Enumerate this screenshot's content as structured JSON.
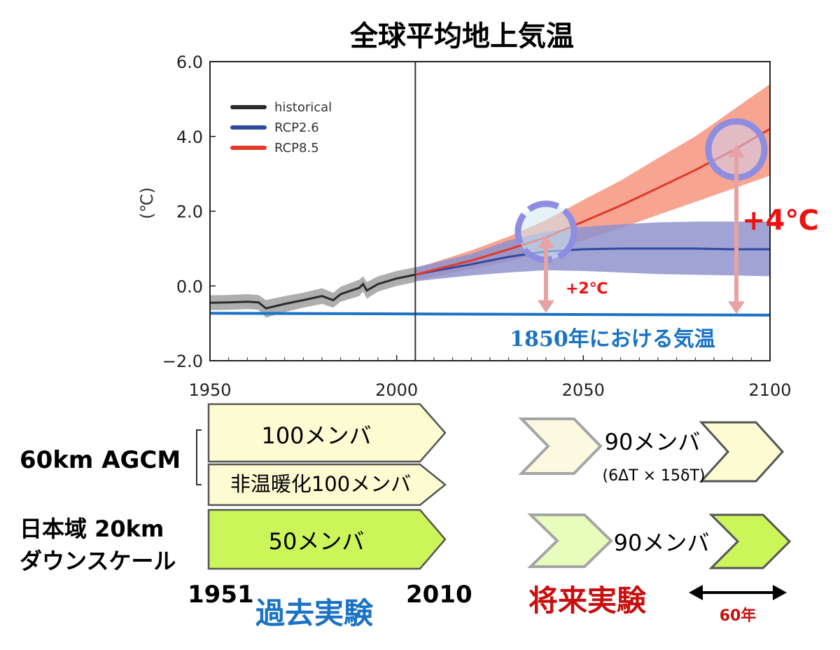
{
  "colors": {
    "historical": "#2b2b2b",
    "historical_band": "#9a9a9a",
    "rcp26": "#2f4aa0",
    "rcp26_band": "#8f93cc",
    "rcp85": "#e23a2a",
    "rcp85_band": "#f4866c",
    "baseline": "#1a72c4",
    "arrow": "#e6a3a3",
    "annotation_red": "#ee1111",
    "circle": "#8e8de0",
    "past_box": "#fdfbd2",
    "model20_box": "#ccf55a",
    "past_label": "#1a72c4",
    "future_label": "#c80f0f"
  },
  "chart_data": {
    "type": "line",
    "title": "全球平均地上気温",
    "ylabel": "(℃)",
    "xlabel": "",
    "xlim": [
      1950,
      2100
    ],
    "ylim": [
      -2.0,
      6.0
    ],
    "xticks": [
      "1950",
      "2000",
      "2050",
      "2100"
    ],
    "yticks": [
      "6.0",
      "4.0",
      "2.0",
      "0.0",
      "−2.0"
    ],
    "divider_x": 2005,
    "legend": {
      "placement": "top-left",
      "entries": [
        "historical",
        "RCP2.6",
        "RCP8.5"
      ]
    },
    "series": [
      {
        "name": "historical",
        "x": [
          1950,
          1955,
          1960,
          1963,
          1965,
          1970,
          1975,
          1980,
          1983,
          1985,
          1990,
          1991,
          1992,
          1995,
          2000,
          2005
        ],
        "y": [
          -0.45,
          -0.44,
          -0.42,
          -0.44,
          -0.6,
          -0.48,
          -0.38,
          -0.27,
          -0.38,
          -0.22,
          -0.05,
          0.05,
          -0.12,
          0.05,
          0.2,
          0.3
        ],
        "band_lower": [
          -0.65,
          -0.64,
          -0.62,
          -0.64,
          -0.85,
          -0.7,
          -0.58,
          -0.48,
          -0.58,
          -0.42,
          -0.27,
          -0.15,
          -0.34,
          -0.15,
          0.0,
          0.1
        ],
        "band_upper": [
          -0.25,
          -0.24,
          -0.22,
          -0.24,
          -0.38,
          -0.27,
          -0.18,
          -0.06,
          -0.18,
          -0.02,
          0.17,
          0.26,
          0.1,
          0.26,
          0.4,
          0.5
        ]
      },
      {
        "name": "RCP2.6",
        "x": [
          2005,
          2010,
          2020,
          2030,
          2040,
          2050,
          2060,
          2070,
          2080,
          2090,
          2100
        ],
        "y": [
          0.3,
          0.4,
          0.58,
          0.78,
          0.92,
          0.98,
          1.0,
          1.0,
          1.0,
          0.98,
          0.98
        ],
        "band_lower": [
          0.12,
          0.18,
          0.28,
          0.36,
          0.42,
          0.4,
          0.36,
          0.32,
          0.3,
          0.28,
          0.26
        ],
        "band_upper": [
          0.5,
          0.62,
          0.86,
          1.22,
          1.45,
          1.58,
          1.65,
          1.7,
          1.72,
          1.72,
          1.72
        ]
      },
      {
        "name": "RCP8.5",
        "x": [
          2005,
          2010,
          2020,
          2030,
          2040,
          2050,
          2060,
          2070,
          2080,
          2090,
          2100
        ],
        "y": [
          0.3,
          0.43,
          0.68,
          0.98,
          1.3,
          1.72,
          2.15,
          2.62,
          3.1,
          3.62,
          4.2
        ],
        "band_lower": [
          0.14,
          0.25,
          0.45,
          0.66,
          0.9,
          1.22,
          1.55,
          1.9,
          2.25,
          2.6,
          2.95
        ],
        "band_upper": [
          0.46,
          0.63,
          0.95,
          1.32,
          1.76,
          2.3,
          2.82,
          3.42,
          4.0,
          4.7,
          5.4
        ]
      },
      {
        "name": "",
        "role": "baseline",
        "x": [
          1950,
          2100
        ],
        "y": [
          -0.73,
          -0.78
        ]
      }
    ],
    "annotations": {
      "baseline_label": "1850年における気温",
      "plus2": "+2℃",
      "plus4": "+4℃"
    },
    "markers": [
      {
        "kind": "arrow",
        "x": 2040,
        "y_from": -0.72,
        "y_to": 1.35,
        "label": "plus2"
      },
      {
        "kind": "arrow",
        "x": 2091,
        "y_from": -0.75,
        "y_to": 3.78,
        "label": "plus4"
      },
      {
        "kind": "circle",
        "x": 2040,
        "y": 1.45,
        "style": "dashed"
      },
      {
        "kind": "circle",
        "x": 2091,
        "y": 3.65,
        "style": "solid"
      }
    ]
  },
  "experiments": {
    "rows": {
      "agcm60": "60km AGCM",
      "rcm20_line1": "日本域 20km",
      "rcm20_line2": "ダウンスケール"
    },
    "past": {
      "box1": "100メンバ",
      "box2": "非温暖化100メンバ",
      "box3": "50メンバ"
    },
    "future": {
      "row1": "90メンバ",
      "row1_sub": "(6ΔT × 15δT)",
      "row2": "90メンバ"
    },
    "years": {
      "start": "1951",
      "end": "2010"
    },
    "labels": {
      "past": "過去実験",
      "future": "将来実験",
      "span": "60年"
    }
  }
}
